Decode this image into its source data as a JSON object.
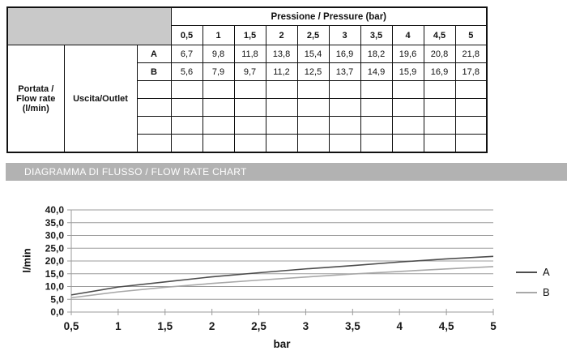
{
  "table": {
    "pressure_header": "Pressione / Pressure (bar)",
    "pressure_values": [
      "0,5",
      "1",
      "1,5",
      "2",
      "2,5",
      "3",
      "3,5",
      "4",
      "4,5",
      "5"
    ],
    "row_label": "Portata / Flow rate (l/min)",
    "outlet_label": "Uscita/Outlet",
    "rows": [
      {
        "label": "A",
        "values": [
          "6,7",
          "9,8",
          "11,8",
          "13,8",
          "15,4",
          "16,9",
          "18,2",
          "19,6",
          "20,8",
          "21,8"
        ]
      },
      {
        "label": "B",
        "values": [
          "5,6",
          "7,9",
          "9,7",
          "11,2",
          "12,5",
          "13,7",
          "14,9",
          "15,9",
          "16,9",
          "17,8"
        ]
      }
    ],
    "empty_row_count": 4
  },
  "banner": {
    "title": "DIAGRAMMA DI FLUSSO / FLOW RATE CHART"
  },
  "chart_data": {
    "type": "line",
    "title": "",
    "xlabel": "bar",
    "ylabel": "l/min",
    "x": [
      0.5,
      1,
      1.5,
      2,
      2.5,
      3,
      3.5,
      4,
      4.5,
      5
    ],
    "x_tick_labels": [
      "0,5",
      "1",
      "1,5",
      "2",
      "2,5",
      "3",
      "3,5",
      "4",
      "4,5",
      "5"
    ],
    "y_ticks": [
      0,
      5,
      10,
      15,
      20,
      25,
      30,
      35,
      40
    ],
    "y_tick_labels": [
      "0,0",
      "5,0",
      "10,0",
      "15,0",
      "20,0",
      "25,0",
      "30,0",
      "35,0",
      "40,0"
    ],
    "ylim": [
      0,
      40
    ],
    "grid": true,
    "legend_position": "right",
    "series": [
      {
        "name": "A",
        "color": "#4d4d4d",
        "values": [
          6.7,
          9.8,
          11.8,
          13.8,
          15.4,
          16.9,
          18.2,
          19.6,
          20.8,
          21.8
        ]
      },
      {
        "name": "B",
        "color": "#a8a8a8",
        "values": [
          5.6,
          7.9,
          9.7,
          11.2,
          12.5,
          13.7,
          14.9,
          15.9,
          16.9,
          17.8
        ]
      }
    ]
  },
  "colors": {
    "table_header_bg": "#c9c9c9",
    "banner_bg": "#b2b2b2",
    "banner_text": "#ffffff",
    "grid_line": "#9b9b9b",
    "border": "#111111"
  }
}
